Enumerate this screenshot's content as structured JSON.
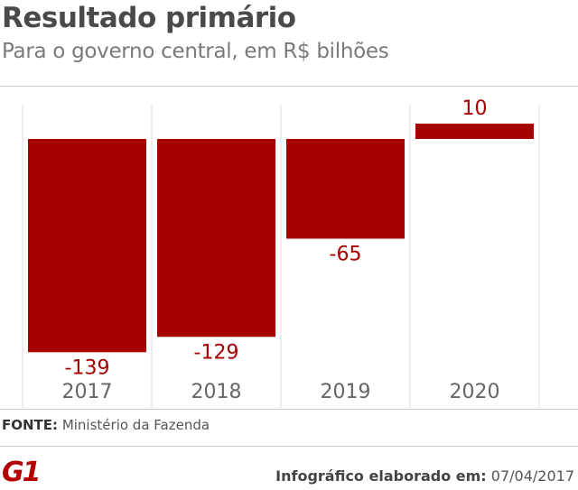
{
  "header": {
    "title": "Resultado primário",
    "subtitle": "Para o governo central, em R$ bilhões"
  },
  "chart_data": {
    "type": "bar",
    "categories": [
      "2017",
      "2018",
      "2019",
      "2020"
    ],
    "values": [
      -139,
      -129,
      -65,
      10
    ],
    "value_labels": [
      "-139",
      "-129",
      "-65",
      "10"
    ],
    "bar_color": "#a60000",
    "label_color": "#a60000",
    "grid": true,
    "legend": "none"
  },
  "footer": {
    "source_label": "FONTE:",
    "source_text": "Ministério da Fazenda",
    "logo_text": "G1",
    "credit_label": "Infográfico elaborado em:",
    "credit_date": "07/04/2017"
  },
  "colors": {
    "accent": "#a60000",
    "logo": "#b30000",
    "grid": "#dddddd"
  }
}
